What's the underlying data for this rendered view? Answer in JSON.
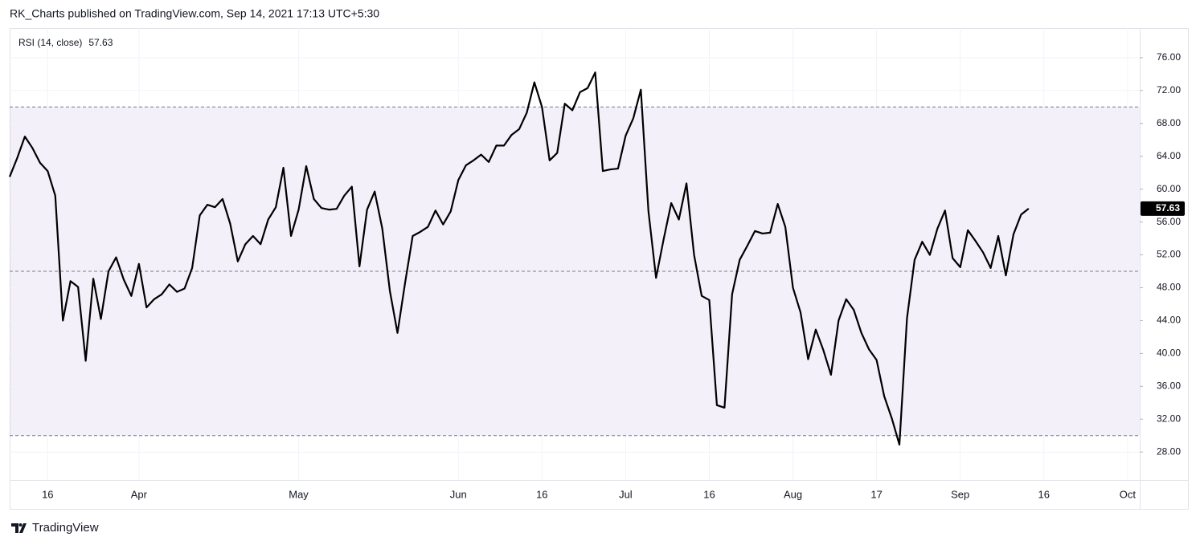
{
  "header": "RK_Charts published on TradingView.com, Sep 14, 2021 17:13 UTC+5:30",
  "footer": "TradingView",
  "chart_data": {
    "type": "line",
    "categories": [
      null,
      null,
      null,
      null,
      null,
      "16",
      null,
      null,
      null,
      null,
      null,
      null,
      null,
      null,
      null,
      null,
      null,
      "Apr",
      null,
      null,
      null,
      null,
      null,
      null,
      null,
      null,
      null,
      null,
      null,
      null,
      null,
      null,
      null,
      null,
      null,
      null,
      null,
      null,
      "May",
      null,
      null,
      null,
      null,
      null,
      null,
      null,
      null,
      null,
      null,
      null,
      null,
      null,
      null,
      null,
      null,
      null,
      null,
      null,
      null,
      "Jun",
      null,
      null,
      null,
      null,
      null,
      null,
      null,
      null,
      null,
      null,
      "16",
      null,
      null,
      null,
      null,
      null,
      null,
      null,
      null,
      null,
      null,
      "Jul",
      null,
      null,
      null,
      null,
      null,
      null,
      null,
      null,
      null,
      null,
      "16",
      null,
      null,
      null,
      null,
      null,
      null,
      null,
      null,
      null,
      null,
      "Aug",
      null,
      null,
      null,
      null,
      null,
      null,
      null,
      null,
      null,
      null,
      "17",
      null,
      null,
      null,
      null,
      null,
      null,
      null,
      null,
      null,
      null,
      "Sep",
      null,
      null,
      null,
      null,
      null,
      null,
      null,
      null,
      null,
      null,
      "16",
      null,
      null,
      null,
      null,
      null,
      null,
      null,
      null,
      null,
      null,
      "Oct"
    ],
    "series": [
      {
        "name": "RSI (14, close)",
        "color": "#000000",
        "values": [
          61.5,
          63.8,
          66.4,
          65.0,
          63.2,
          62.2,
          59.2,
          44.0,
          48.8,
          48.1,
          39.1,
          49.1,
          44.2,
          50.0,
          51.7,
          49.0,
          47.0,
          50.9,
          45.6,
          46.6,
          47.2,
          48.4,
          47.5,
          47.9,
          50.4,
          56.8,
          58.1,
          57.8,
          58.8,
          55.8,
          51.2,
          53.3,
          54.3,
          53.3,
          56.3,
          57.8,
          62.6,
          54.3,
          57.5,
          62.8,
          58.8,
          57.7,
          57.5,
          57.6,
          59.2,
          60.3,
          50.6,
          57.5,
          59.7,
          55.2,
          47.6,
          42.5,
          48.6,
          54.3,
          54.8,
          55.4,
          57.4,
          55.7,
          57.3,
          61.1,
          62.9,
          63.5,
          64.2,
          63.3,
          65.3,
          65.3,
          66.6,
          67.3,
          69.3,
          73.0,
          70.0,
          63.5,
          64.4,
          70.4,
          69.6,
          71.8,
          72.3,
          74.2,
          62.2,
          62.4,
          62.5,
          66.5,
          68.6,
          72.1,
          57.3,
          49.2,
          53.9,
          58.3,
          56.3,
          60.7,
          52.0,
          47.0,
          46.5,
          33.7,
          33.4,
          47.2,
          51.4,
          53.1,
          54.9,
          54.6,
          54.7,
          58.2,
          55.4,
          48.0,
          45.0,
          39.3,
          42.9,
          40.4,
          37.4,
          44.0,
          46.6,
          45.3,
          42.5,
          40.5,
          39.2,
          34.8,
          32.1,
          28.9,
          44.3,
          51.4,
          53.6,
          52.0,
          55.2,
          57.4,
          51.6,
          50.5,
          55.0,
          53.7,
          52.3,
          50.4,
          54.3,
          49.5,
          54.5,
          56.9,
          57.63,
          null,
          null,
          null,
          null,
          null,
          null,
          null,
          null,
          null,
          null,
          null,
          null,
          null
        ]
      }
    ],
    "ylim": [
      24.6,
      79.6
    ],
    "yticks": [
      {
        "value": 28,
        "label": "28.00"
      },
      {
        "value": 32,
        "label": "32.00"
      },
      {
        "value": 36,
        "label": "36.00"
      },
      {
        "value": 40,
        "label": "40.00"
      },
      {
        "value": 44,
        "label": "44.00"
      },
      {
        "value": 48,
        "label": "48.00"
      },
      {
        "value": 52,
        "label": "52.00"
      },
      {
        "value": 56,
        "label": "56.00"
      },
      {
        "value": 60,
        "label": "60.00"
      },
      {
        "value": 64,
        "label": "64.00"
      },
      {
        "value": 68,
        "label": "68.00"
      },
      {
        "value": 72,
        "label": "72.00"
      },
      {
        "value": 76,
        "label": "76.00"
      }
    ],
    "hlines": [
      70,
      50,
      30
    ],
    "band_color": "#7e57c2",
    "grid": true
  }
}
